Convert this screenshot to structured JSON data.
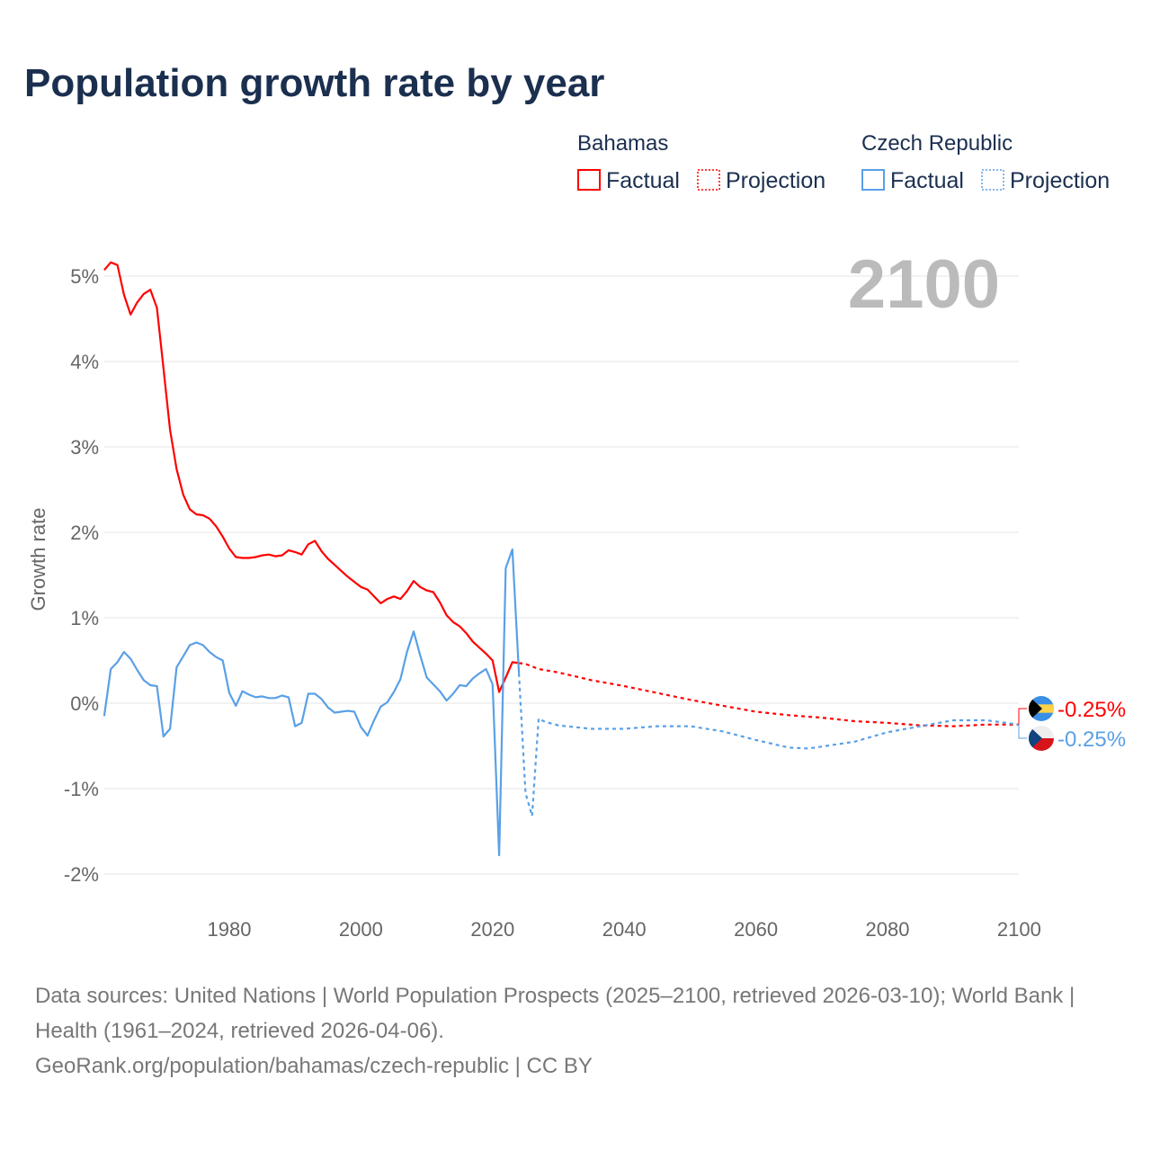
{
  "chart_data": {
    "type": "line",
    "title": "Population growth rate by year",
    "ylabel": "Growth rate",
    "xlabel": "",
    "xlim": [
      1961,
      2100
    ],
    "ylim": [
      -2.2,
      5.3
    ],
    "x_ticks": [
      1980,
      2000,
      2020,
      2040,
      2060,
      2080,
      2100
    ],
    "y_ticks": [
      {
        "v": 5,
        "label": "5%"
      },
      {
        "v": 4,
        "label": "4%"
      },
      {
        "v": 3,
        "label": "3%"
      },
      {
        "v": 2,
        "label": "2%"
      },
      {
        "v": 1,
        "label": "1%"
      },
      {
        "v": 0,
        "label": "0%"
      },
      {
        "v": -1,
        "label": "-1%"
      },
      {
        "v": -2,
        "label": "-2%"
      }
    ],
    "grid": true,
    "year_label": "2100",
    "legend": {
      "placement": "top-right",
      "groups": [
        {
          "name": "Bahamas",
          "items": [
            "Factual",
            "Projection"
          ]
        },
        {
          "name": "Czech Republic",
          "items": [
            "Factual",
            "Projection"
          ]
        }
      ]
    },
    "series": [
      {
        "name": "Bahamas",
        "color": "#ff0000",
        "end_label": "-0.25%",
        "factual": {
          "x": [
            1961,
            1962,
            1963,
            1964,
            1965,
            1966,
            1967,
            1968,
            1969,
            1970,
            1971,
            1972,
            1973,
            1974,
            1975,
            1976,
            1977,
            1978,
            1979,
            1980,
            1981,
            1982,
            1983,
            1984,
            1985,
            1986,
            1987,
            1988,
            1989,
            1990,
            1991,
            1992,
            1993,
            1994,
            1995,
            1996,
            1997,
            1998,
            1999,
            2000,
            2001,
            2002,
            2003,
            2004,
            2005,
            2006,
            2007,
            2008,
            2009,
            2010,
            2011,
            2012,
            2013,
            2014,
            2015,
            2016,
            2017,
            2018,
            2019,
            2020,
            2021,
            2022,
            2023,
            2024
          ],
          "y": [
            5.07,
            5.16,
            5.13,
            4.78,
            4.55,
            4.69,
            4.79,
            4.84,
            4.63,
            3.92,
            3.2,
            2.74,
            2.44,
            2.27,
            2.21,
            2.2,
            2.16,
            2.07,
            1.95,
            1.81,
            1.71,
            1.7,
            1.7,
            1.71,
            1.73,
            1.74,
            1.72,
            1.73,
            1.79,
            1.77,
            1.74,
            1.86,
            1.9,
            1.78,
            1.69,
            1.62,
            1.55,
            1.48,
            1.42,
            1.36,
            1.33,
            1.25,
            1.17,
            1.22,
            1.25,
            1.22,
            1.31,
            1.43,
            1.36,
            1.32,
            1.3,
            1.18,
            1.03,
            0.95,
            0.9,
            0.82,
            0.72,
            0.65,
            0.58,
            0.5,
            0.13,
            0.3,
            0.48,
            0.47
          ]
        },
        "projection": {
          "x": [
            2024,
            2025,
            2027,
            2030,
            2035,
            2040,
            2045,
            2050,
            2055,
            2060,
            2065,
            2070,
            2075,
            2080,
            2085,
            2090,
            2095,
            2100
          ],
          "y": [
            0.47,
            0.46,
            0.4,
            0.36,
            0.27,
            0.2,
            0.12,
            0.04,
            -0.03,
            -0.1,
            -0.14,
            -0.17,
            -0.21,
            -0.23,
            -0.26,
            -0.27,
            -0.25,
            -0.25
          ]
        }
      },
      {
        "name": "Czech Republic",
        "color": "#5aa0e6",
        "end_label": "-0.25%",
        "factual": {
          "x": [
            1961,
            1962,
            1963,
            1964,
            1965,
            1966,
            1967,
            1968,
            1969,
            1970,
            1971,
            1972,
            1973,
            1974,
            1975,
            1976,
            1977,
            1978,
            1979,
            1980,
            1981,
            1982,
            1983,
            1984,
            1985,
            1986,
            1987,
            1988,
            1989,
            1990,
            1991,
            1992,
            1993,
            1994,
            1995,
            1996,
            1997,
            1998,
            1999,
            2000,
            2001,
            2002,
            2003,
            2004,
            2005,
            2006,
            2007,
            2008,
            2009,
            2010,
            2011,
            2012,
            2013,
            2014,
            2015,
            2016,
            2017,
            2018,
            2019,
            2020,
            2021,
            2022,
            2023,
            2024
          ],
          "y": [
            -0.15,
            0.4,
            0.48,
            0.6,
            0.52,
            0.39,
            0.27,
            0.21,
            0.2,
            -0.39,
            -0.3,
            0.42,
            0.55,
            0.68,
            0.71,
            0.68,
            0.6,
            0.54,
            0.5,
            0.12,
            -0.03,
            0.14,
            0.1,
            0.07,
            0.08,
            0.06,
            0.06,
            0.09,
            0.07,
            -0.27,
            -0.23,
            0.11,
            0.11,
            0.05,
            -0.05,
            -0.11,
            -0.1,
            -0.09,
            -0.1,
            -0.28,
            -0.38,
            -0.2,
            -0.04,
            0.01,
            0.13,
            0.28,
            0.6,
            0.84,
            0.56,
            0.3,
            0.22,
            0.14,
            0.03,
            0.11,
            0.21,
            0.2,
            0.29,
            0.35,
            0.4,
            0.22,
            -1.78,
            1.58,
            1.8,
            0.35
          ]
        },
        "projection": {
          "x": [
            2024,
            2025,
            2026,
            2027,
            2028,
            2030,
            2035,
            2040,
            2045,
            2050,
            2055,
            2060,
            2065,
            2068,
            2075,
            2080,
            2085,
            2090,
            2095,
            2100
          ],
          "y": [
            0.35,
            -1.05,
            -1.32,
            -0.18,
            -0.22,
            -0.26,
            -0.3,
            -0.3,
            -0.27,
            -0.27,
            -0.33,
            -0.43,
            -0.52,
            -0.53,
            -0.45,
            -0.34,
            -0.27,
            -0.2,
            -0.2,
            -0.25
          ]
        }
      }
    ]
  },
  "footer": {
    "sources": "Data sources: United Nations | World Population Prospects (2025–2100, retrieved 2026-03-10); World Bank | Health (1961–2024, retrieved 2026-04-06).",
    "credit": "GeoRank.org/population/bahamas/czech-republic | CC BY"
  }
}
